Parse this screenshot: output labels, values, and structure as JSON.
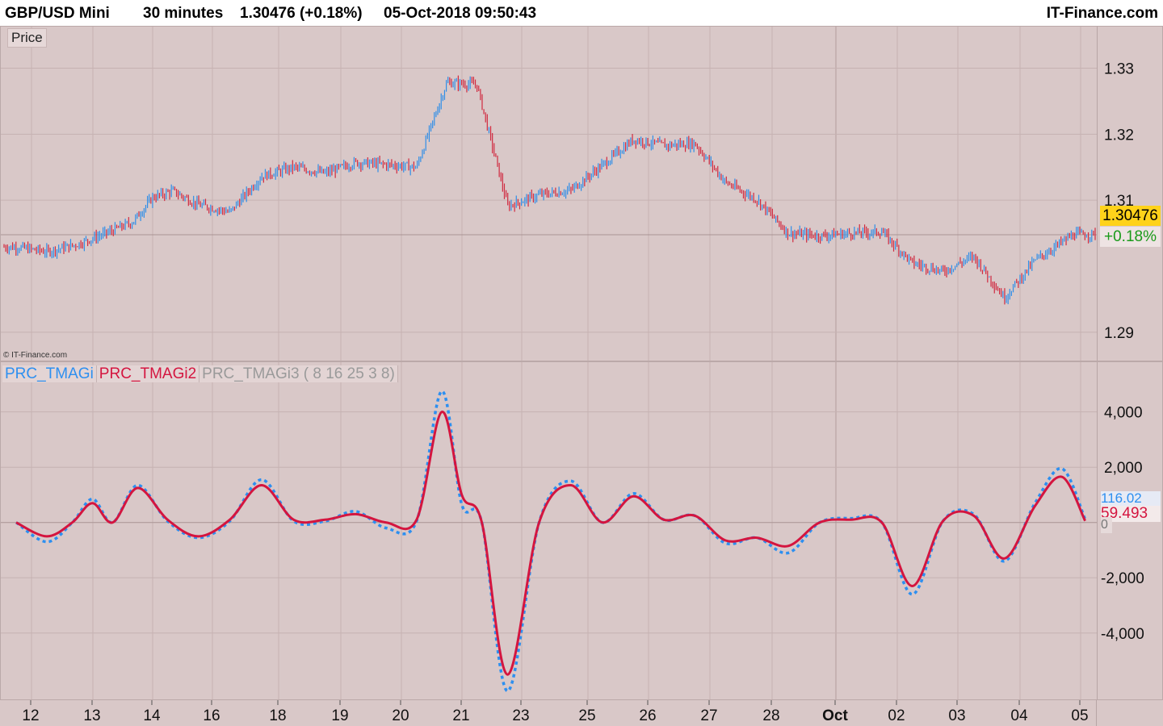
{
  "header": {
    "instrument": "GBP/USD Mini",
    "timeframe": "30 minutes",
    "last": "1.30476 (+0.18%)",
    "datetime": "05-Oct-2018 09:50:43",
    "brand": "IT-Finance.com"
  },
  "price_panel": {
    "tag": "Price",
    "watermark": "© IT-Finance.com",
    "last_price_badge": "1.30476",
    "change_badge": "+0.18%"
  },
  "indicator_panel": {
    "legend": [
      "PRC_TMAGi",
      "PRC_TMAGi2",
      "PRC_TMAGi3 ( 8 16 25 3 8)"
    ],
    "value_blue": "116.02",
    "value_red": "59.493",
    "value_zero": "0"
  },
  "colors": {
    "background": "#d9c8c8",
    "grid": "#c6b2b2",
    "bull": "#2f8ee8",
    "bear": "#d02a40",
    "series_blue": "#2d8ff0",
    "series_red": "#d4153f",
    "badge_yellow": "#ffd21a",
    "badge_green_text": "#1a9a1a"
  },
  "chart_data": [
    {
      "type": "candlestick",
      "title": "GBP/USD Mini 30 minutes",
      "x_ticks": [
        "12",
        "13",
        "14",
        "16",
        "18",
        "19",
        "20",
        "21",
        "23",
        "25",
        "26",
        "27",
        "28",
        "Oct",
        "02",
        "03",
        "04",
        "05"
      ],
      "y_ticks": [
        "1.29",
        "1.31",
        "1.32",
        "1.33"
      ],
      "ylim": [
        1.2857,
        1.3363
      ],
      "grid": true,
      "close_path": [
        {
          "x": "12",
          "y": 1.3029
        },
        {
          "x": "12",
          "y": 1.3022
        },
        {
          "x": "13",
          "y": 1.3033
        },
        {
          "x": "13",
          "y": 1.3051
        },
        {
          "x": "14",
          "y": 1.3067
        },
        {
          "x": "14",
          "y": 1.3104
        },
        {
          "x": "14",
          "y": 1.3114
        },
        {
          "x": "16",
          "y": 1.3093
        },
        {
          "x": "16",
          "y": 1.3082
        },
        {
          "x": "18",
          "y": 1.3136
        },
        {
          "x": "18",
          "y": 1.315
        },
        {
          "x": "19",
          "y": 1.3141
        },
        {
          "x": "19",
          "y": 1.3157
        },
        {
          "x": "20",
          "y": 1.3154
        },
        {
          "x": "20",
          "y": 1.315
        },
        {
          "x": "21",
          "y": 1.3278
        },
        {
          "x": "21",
          "y": 1.3275
        },
        {
          "x": "23",
          "y": 1.3091
        },
        {
          "x": "23",
          "y": 1.3108
        },
        {
          "x": "25",
          "y": 1.3115
        },
        {
          "x": "25",
          "y": 1.3153
        },
        {
          "x": "26",
          "y": 1.3192
        },
        {
          "x": "26",
          "y": 1.3183
        },
        {
          "x": "27",
          "y": 1.3186
        },
        {
          "x": "27",
          "y": 1.3127
        },
        {
          "x": "28",
          "y": 1.3101
        },
        {
          "x": "28",
          "y": 1.305
        },
        {
          "x": "Oct",
          "y": 1.3046
        },
        {
          "x": "Oct",
          "y": 1.305
        },
        {
          "x": "02",
          "y": 1.3052
        },
        {
          "x": "02",
          "y": 1.3005
        },
        {
          "x": "03",
          "y": 1.2992
        },
        {
          "x": "03",
          "y": 1.3015
        },
        {
          "x": "04",
          "y": 1.2952
        },
        {
          "x": "04",
          "y": 1.3009
        },
        {
          "x": "05",
          "y": 1.3048
        }
      ],
      "last_price": 1.30476,
      "change_pct": 0.18
    },
    {
      "type": "line",
      "series": [
        {
          "name": "PRC_TMAGi",
          "style": "dotted"
        },
        {
          "name": "PRC_TMAGi2",
          "style": "solid"
        }
      ],
      "x_ticks": [
        "12",
        "13",
        "14",
        "16",
        "18",
        "19",
        "20",
        "21",
        "23",
        "25",
        "26",
        "27",
        "28",
        "Oct",
        "02",
        "03",
        "04",
        "05"
      ],
      "y_ticks": [
        "-4,000",
        "-2,000",
        "2,000",
        "4,000"
      ],
      "ylim": [
        -6400,
        5800
      ],
      "series_values": {
        "PRC_TMAGi2": [
          {
            "x": "12",
            "y": 0
          },
          {
            "x": "12",
            "y": -500
          },
          {
            "x": "13",
            "y": 0
          },
          {
            "x": "13",
            "y": 700
          },
          {
            "x": "13",
            "y": 0
          },
          {
            "x": "14",
            "y": 1250
          },
          {
            "x": "14",
            "y": 100
          },
          {
            "x": "16",
            "y": -500
          },
          {
            "x": "16",
            "y": 100
          },
          {
            "x": "18",
            "y": 1350
          },
          {
            "x": "18",
            "y": 100
          },
          {
            "x": "19",
            "y": 100
          },
          {
            "x": "19",
            "y": 300
          },
          {
            "x": "20",
            "y": 0
          },
          {
            "x": "20",
            "y": 100
          },
          {
            "x": "21",
            "y": 4000
          },
          {
            "x": "21",
            "y": 1000
          },
          {
            "x": "21",
            "y": 0
          },
          {
            "x": "23",
            "y": -5500
          },
          {
            "x": "23",
            "y": 0
          },
          {
            "x": "25",
            "y": 1350
          },
          {
            "x": "25",
            "y": 0
          },
          {
            "x": "26",
            "y": 950
          },
          {
            "x": "26",
            "y": 100
          },
          {
            "x": "27",
            "y": 250
          },
          {
            "x": "27",
            "y": -650
          },
          {
            "x": "28",
            "y": -550
          },
          {
            "x": "28",
            "y": -850
          },
          {
            "x": "Oct",
            "y": 0
          },
          {
            "x": "Oct",
            "y": 100
          },
          {
            "x": "02",
            "y": 0
          },
          {
            "x": "02",
            "y": -2300
          },
          {
            "x": "03",
            "y": 50
          },
          {
            "x": "03",
            "y": 250
          },
          {
            "x": "04",
            "y": -1300
          },
          {
            "x": "04",
            "y": 600
          },
          {
            "x": "05",
            "y": 1650
          },
          {
            "x": "05",
            "y": 59.493
          }
        ],
        "PRC_TMAGi": [
          {
            "x": "12",
            "y": 0
          },
          {
            "x": "12",
            "y": -700
          },
          {
            "x": "13",
            "y": 0
          },
          {
            "x": "13",
            "y": 850
          },
          {
            "x": "13",
            "y": 0
          },
          {
            "x": "14",
            "y": 1350
          },
          {
            "x": "14",
            "y": 50
          },
          {
            "x": "16",
            "y": -550
          },
          {
            "x": "16",
            "y": 50
          },
          {
            "x": "18",
            "y": 1550
          },
          {
            "x": "18",
            "y": 50
          },
          {
            "x": "19",
            "y": 50
          },
          {
            "x": "19",
            "y": 400
          },
          {
            "x": "20",
            "y": -200
          },
          {
            "x": "20",
            "y": 50
          },
          {
            "x": "21",
            "y": 4750
          },
          {
            "x": "21",
            "y": 650
          },
          {
            "x": "21",
            "y": 0
          },
          {
            "x": "23",
            "y": -6100
          },
          {
            "x": "23",
            "y": 0
          },
          {
            "x": "25",
            "y": 1500
          },
          {
            "x": "25",
            "y": 0
          },
          {
            "x": "26",
            "y": 1050
          },
          {
            "x": "26",
            "y": 100
          },
          {
            "x": "27",
            "y": 250
          },
          {
            "x": "27",
            "y": -750
          },
          {
            "x": "28",
            "y": -550
          },
          {
            "x": "28",
            "y": -1100
          },
          {
            "x": "Oct",
            "y": 0
          },
          {
            "x": "Oct",
            "y": 150
          },
          {
            "x": "02",
            "y": 0
          },
          {
            "x": "02",
            "y": -2600
          },
          {
            "x": "03",
            "y": 50
          },
          {
            "x": "03",
            "y": 300
          },
          {
            "x": "04",
            "y": -1400
          },
          {
            "x": "04",
            "y": 700
          },
          {
            "x": "05",
            "y": 1950
          },
          {
            "x": "05",
            "y": 116.02
          }
        ]
      },
      "legend_position": "top-left",
      "grid": true
    }
  ]
}
